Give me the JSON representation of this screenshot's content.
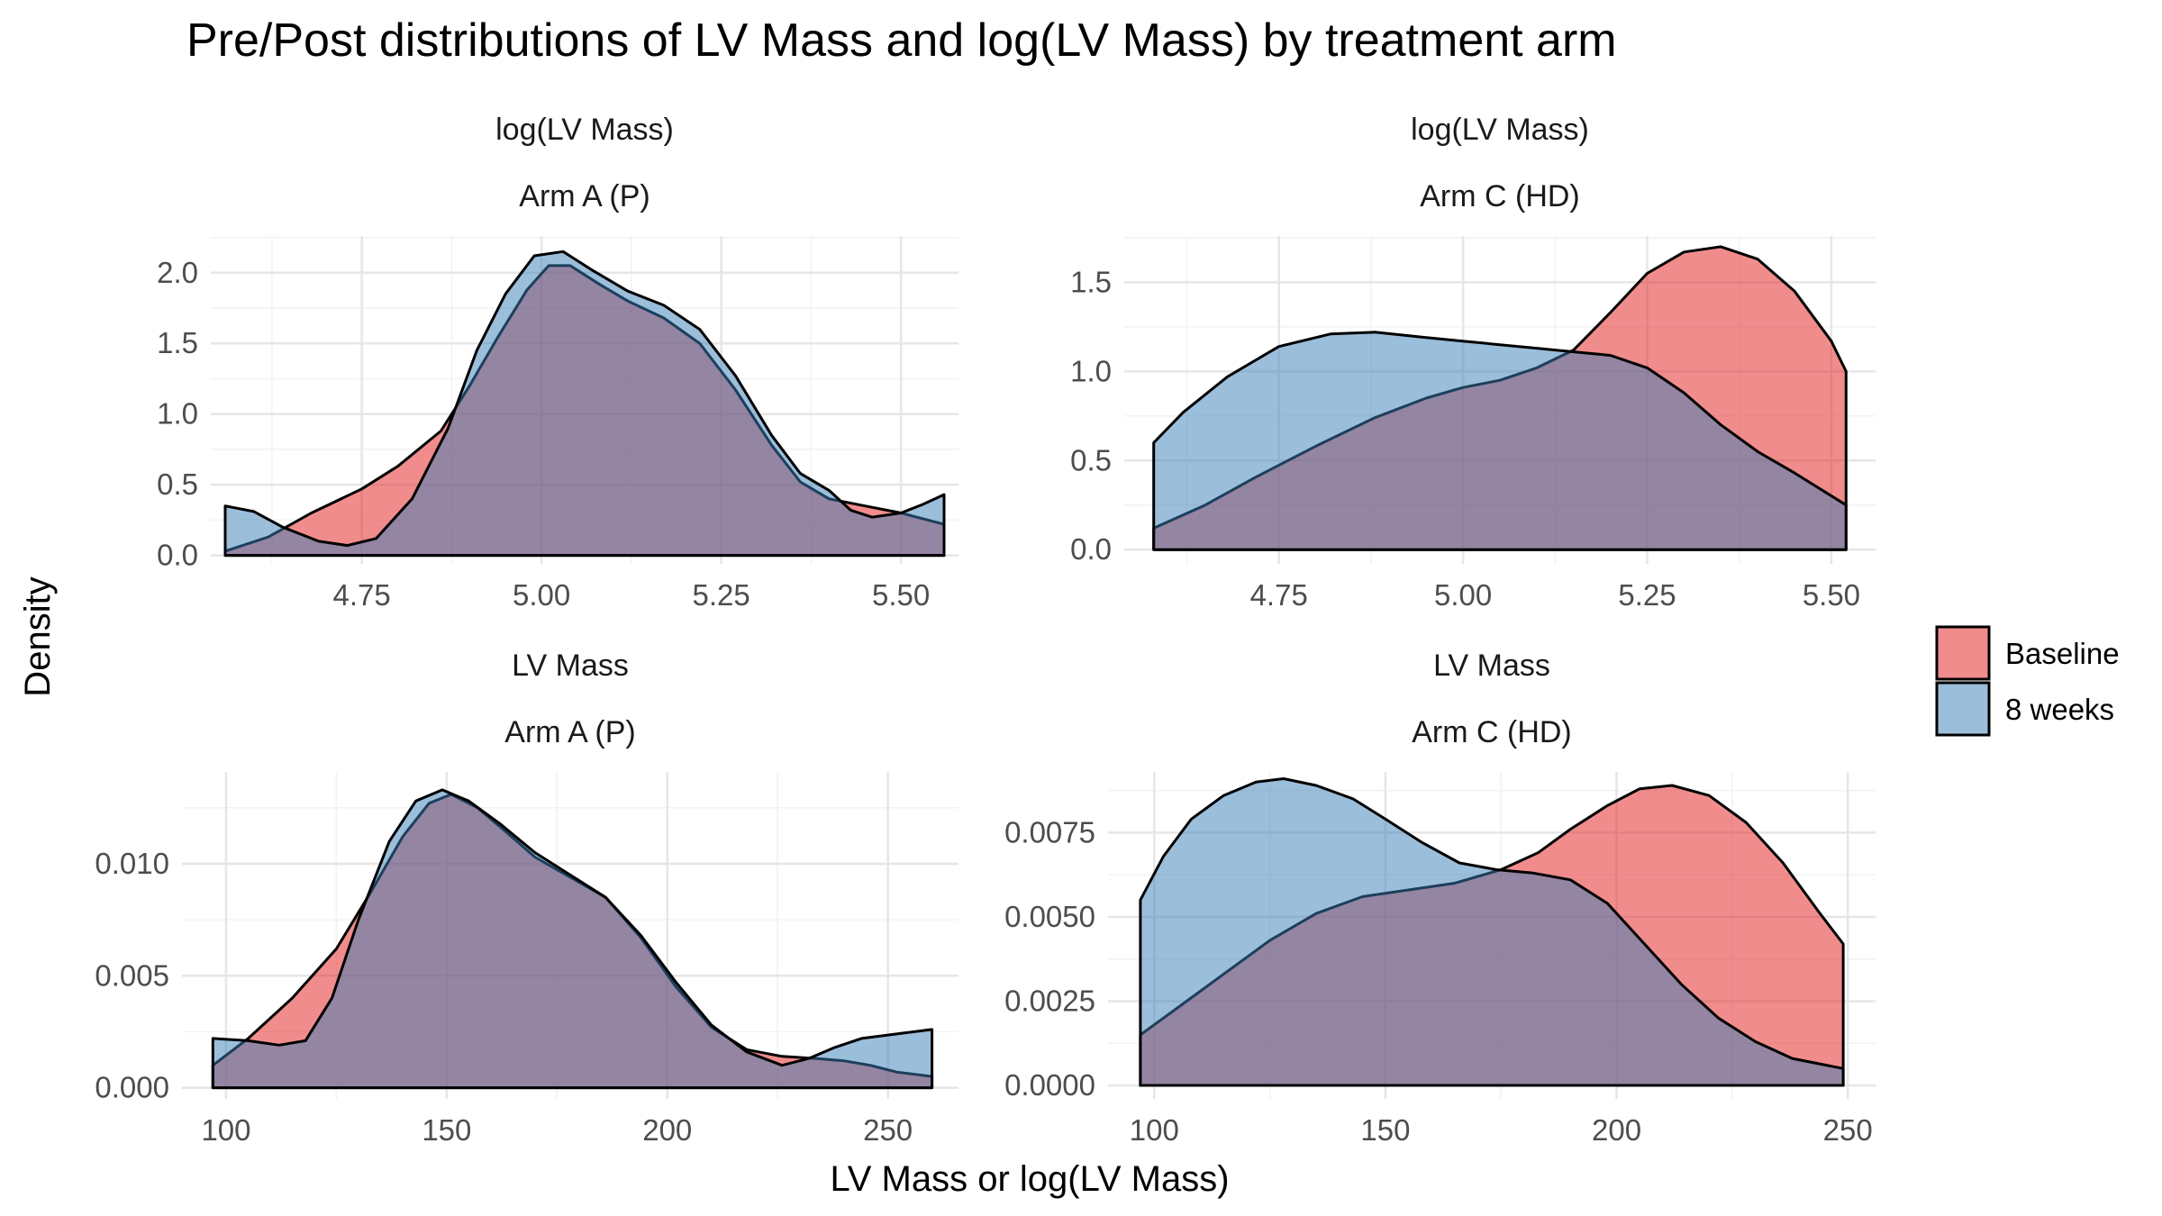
{
  "title": "Pre/Post distributions of LV Mass and log(LV Mass) by treatment arm",
  "xlabel": "LV Mass or log(LV Mass)",
  "ylabel": "Density",
  "legend": {
    "position": "right",
    "items": [
      {
        "label": "Baseline",
        "color": "#E41A1C"
      },
      {
        "label": "8 weeks",
        "color": "#377EB8"
      }
    ]
  },
  "style": {
    "fill_alpha": 0.5,
    "outline_color": "#000000",
    "grid": true,
    "background": "#FFFFFF"
  },
  "chart_data": [
    {
      "type": "area",
      "strip_top": "log(LV Mass)",
      "strip_bottom": "Arm A (P)",
      "xlim": [
        4.54,
        5.58
      ],
      "ylim": [
        -0.06,
        2.26
      ],
      "xticks": [
        4.75,
        5.0,
        5.25,
        5.5
      ],
      "xtick_labels": [
        "4.75",
        "5.00",
        "5.25",
        "5.50"
      ],
      "yticks": [
        0,
        0.5,
        1.0,
        1.5,
        2.0
      ],
      "ytick_labels": [
        "0.0",
        "0.5",
        "1.0",
        "1.5",
        "2.0"
      ],
      "series": [
        {
          "name": "Baseline",
          "points": [
            [
              4.56,
              0.03
            ],
            [
              4.62,
              0.13
            ],
            [
              4.68,
              0.3
            ],
            [
              4.75,
              0.47
            ],
            [
              4.8,
              0.63
            ],
            [
              4.86,
              0.88
            ],
            [
              4.9,
              1.2
            ],
            [
              4.94,
              1.55
            ],
            [
              4.98,
              1.88
            ],
            [
              5.01,
              2.05
            ],
            [
              5.04,
              2.05
            ],
            [
              5.08,
              1.92
            ],
            [
              5.12,
              1.8
            ],
            [
              5.17,
              1.68
            ],
            [
              5.22,
              1.5
            ],
            [
              5.27,
              1.17
            ],
            [
              5.32,
              0.78
            ],
            [
              5.36,
              0.52
            ],
            [
              5.4,
              0.4
            ],
            [
              5.45,
              0.35
            ],
            [
              5.5,
              0.3
            ],
            [
              5.56,
              0.22
            ]
          ]
        },
        {
          "name": "8 weeks",
          "points": [
            [
              4.56,
              0.35
            ],
            [
              4.6,
              0.31
            ],
            [
              4.64,
              0.2
            ],
            [
              4.69,
              0.1
            ],
            [
              4.73,
              0.07
            ],
            [
              4.77,
              0.12
            ],
            [
              4.82,
              0.4
            ],
            [
              4.87,
              0.9
            ],
            [
              4.91,
              1.45
            ],
            [
              4.95,
              1.85
            ],
            [
              4.99,
              2.12
            ],
            [
              5.03,
              2.15
            ],
            [
              5.07,
              2.02
            ],
            [
              5.12,
              1.87
            ],
            [
              5.17,
              1.77
            ],
            [
              5.22,
              1.6
            ],
            [
              5.27,
              1.27
            ],
            [
              5.32,
              0.85
            ],
            [
              5.36,
              0.58
            ],
            [
              5.4,
              0.46
            ],
            [
              5.43,
              0.32
            ],
            [
              5.46,
              0.27
            ],
            [
              5.5,
              0.3
            ],
            [
              5.53,
              0.36
            ],
            [
              5.56,
              0.43
            ]
          ]
        }
      ]
    },
    {
      "type": "area",
      "strip_top": "log(LV Mass)",
      "strip_bottom": "Arm C (HD)",
      "xlim": [
        4.54,
        5.56
      ],
      "ylim": [
        -0.08,
        1.76
      ],
      "xticks": [
        4.75,
        5.0,
        5.25,
        5.5
      ],
      "xtick_labels": [
        "4.75",
        "5.00",
        "5.25",
        "5.50"
      ],
      "yticks": [
        0,
        0.5,
        1.0,
        1.5
      ],
      "ytick_labels": [
        "0.0",
        "0.5",
        "1.0",
        "1.5"
      ],
      "series": [
        {
          "name": "Baseline",
          "points": [
            [
              4.58,
              0.12
            ],
            [
              4.65,
              0.25
            ],
            [
              4.72,
              0.41
            ],
            [
              4.8,
              0.58
            ],
            [
              4.88,
              0.74
            ],
            [
              4.95,
              0.85
            ],
            [
              5.0,
              0.91
            ],
            [
              5.05,
              0.95
            ],
            [
              5.1,
              1.02
            ],
            [
              5.15,
              1.12
            ],
            [
              5.2,
              1.33
            ],
            [
              5.25,
              1.55
            ],
            [
              5.3,
              1.67
            ],
            [
              5.35,
              1.7
            ],
            [
              5.4,
              1.63
            ],
            [
              5.45,
              1.45
            ],
            [
              5.5,
              1.17
            ],
            [
              5.52,
              1.0
            ]
          ]
        },
        {
          "name": "8 weeks",
          "points": [
            [
              4.58,
              0.6
            ],
            [
              4.62,
              0.77
            ],
            [
              4.68,
              0.97
            ],
            [
              4.75,
              1.14
            ],
            [
              4.82,
              1.21
            ],
            [
              4.88,
              1.22
            ],
            [
              4.95,
              1.19
            ],
            [
              5.0,
              1.17
            ],
            [
              5.05,
              1.15
            ],
            [
              5.1,
              1.13
            ],
            [
              5.15,
              1.11
            ],
            [
              5.2,
              1.09
            ],
            [
              5.25,
              1.02
            ],
            [
              5.3,
              0.88
            ],
            [
              5.35,
              0.7
            ],
            [
              5.4,
              0.55
            ],
            [
              5.45,
              0.43
            ],
            [
              5.52,
              0.25
            ]
          ]
        }
      ]
    },
    {
      "type": "area",
      "strip_top": "LV Mass",
      "strip_bottom": "Arm A (P)",
      "xlim": [
        90,
        266
      ],
      "ylim": [
        -0.0005,
        0.0141
      ],
      "xticks": [
        100,
        150,
        200,
        250
      ],
      "xtick_labels": [
        "100",
        "150",
        "200",
        "250"
      ],
      "yticks": [
        0,
        0.005,
        0.01
      ],
      "ytick_labels": [
        "0.000",
        "0.005",
        "0.010"
      ],
      "series": [
        {
          "name": "Baseline",
          "points": [
            [
              97,
              0.001
            ],
            [
              105,
              0.0022
            ],
            [
              115,
              0.004
            ],
            [
              125,
              0.0062
            ],
            [
              133,
              0.0088
            ],
            [
              140,
              0.0112
            ],
            [
              146,
              0.0127
            ],
            [
              151,
              0.0131
            ],
            [
              157,
              0.0125
            ],
            [
              163,
              0.0115
            ],
            [
              170,
              0.0103
            ],
            [
              178,
              0.0094
            ],
            [
              186,
              0.0085
            ],
            [
              194,
              0.0067
            ],
            [
              202,
              0.0045
            ],
            [
              210,
              0.0027
            ],
            [
              218,
              0.0017
            ],
            [
              226,
              0.0014
            ],
            [
              234,
              0.0013
            ],
            [
              240,
              0.0012
            ],
            [
              246,
              0.001
            ],
            [
              252,
              0.0007
            ],
            [
              260,
              0.0005
            ]
          ]
        },
        {
          "name": "8 weeks",
          "points": [
            [
              97,
              0.0022
            ],
            [
              105,
              0.0021
            ],
            [
              112,
              0.0019
            ],
            [
              118,
              0.0021
            ],
            [
              124,
              0.004
            ],
            [
              130,
              0.0075
            ],
            [
              137,
              0.011
            ],
            [
              143,
              0.0128
            ],
            [
              149,
              0.0133
            ],
            [
              155,
              0.0128
            ],
            [
              162,
              0.0118
            ],
            [
              170,
              0.0105
            ],
            [
              178,
              0.0095
            ],
            [
              186,
              0.0085
            ],
            [
              194,
              0.0068
            ],
            [
              202,
              0.0047
            ],
            [
              210,
              0.0028
            ],
            [
              218,
              0.0016
            ],
            [
              226,
              0.001
            ],
            [
              232,
              0.0013
            ],
            [
              238,
              0.0018
            ],
            [
              244,
              0.0022
            ],
            [
              252,
              0.0024
            ],
            [
              260,
              0.0026
            ]
          ]
        }
      ]
    },
    {
      "type": "area",
      "strip_top": "LV Mass",
      "strip_bottom": "Arm C (HD)",
      "xlim": [
        90,
        256
      ],
      "ylim": [
        -0.0004,
        0.0093
      ],
      "xticks": [
        100,
        150,
        200,
        250
      ],
      "xtick_labels": [
        "100",
        "150",
        "200",
        "250"
      ],
      "yticks": [
        0,
        0.0025,
        0.005,
        0.0075
      ],
      "ytick_labels": [
        "0.0000",
        "0.0025",
        "0.0050",
        "0.0075"
      ],
      "series": [
        {
          "name": "Baseline",
          "points": [
            [
              97,
              0.0015
            ],
            [
              105,
              0.0023
            ],
            [
              115,
              0.0033
            ],
            [
              125,
              0.0043
            ],
            [
              135,
              0.0051
            ],
            [
              145,
              0.0056
            ],
            [
              155,
              0.0058
            ],
            [
              165,
              0.006
            ],
            [
              175,
              0.0064
            ],
            [
              183,
              0.0069
            ],
            [
              190,
              0.0076
            ],
            [
              198,
              0.0083
            ],
            [
              205,
              0.0088
            ],
            [
              212,
              0.0089
            ],
            [
              220,
              0.0086
            ],
            [
              228,
              0.0078
            ],
            [
              236,
              0.0066
            ],
            [
              244,
              0.0051
            ],
            [
              249,
              0.0042
            ]
          ]
        },
        {
          "name": "8 weeks",
          "points": [
            [
              97,
              0.0055
            ],
            [
              102,
              0.0068
            ],
            [
              108,
              0.0079
            ],
            [
              115,
              0.0086
            ],
            [
              122,
              0.009
            ],
            [
              128,
              0.0091
            ],
            [
              135,
              0.0089
            ],
            [
              143,
              0.0085
            ],
            [
              150,
              0.0079
            ],
            [
              158,
              0.0072
            ],
            [
              166,
              0.0066
            ],
            [
              174,
              0.0064
            ],
            [
              182,
              0.0063
            ],
            [
              190,
              0.0061
            ],
            [
              198,
              0.0054
            ],
            [
              206,
              0.0042
            ],
            [
              214,
              0.003
            ],
            [
              222,
              0.002
            ],
            [
              230,
              0.0013
            ],
            [
              238,
              0.0008
            ],
            [
              249,
              0.0005
            ]
          ]
        }
      ]
    }
  ]
}
